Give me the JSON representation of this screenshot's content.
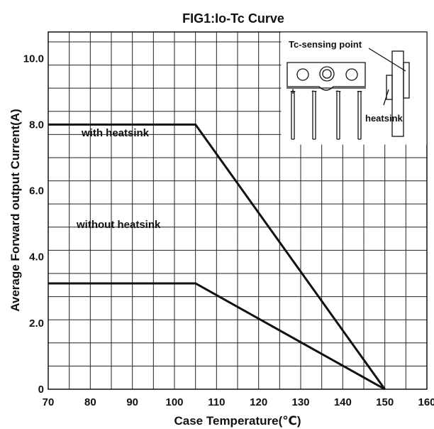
{
  "chart_data": {
    "type": "line",
    "title": "FIG1:Io-Tc Curve",
    "xlabel": "Case Temperature(℃)",
    "ylabel": "Average Forward output Current(A)",
    "xlim": [
      70,
      160
    ],
    "ylim": [
      0,
      10.8
    ],
    "x_ticks": [
      "70",
      "80",
      "90",
      "100",
      "110",
      "120",
      "130",
      "140",
      "150",
      "160"
    ],
    "y_ticks": [
      "0",
      "2.0",
      "4.0",
      "6.0",
      "8.0",
      "10.0"
    ],
    "grid": true,
    "series": [
      {
        "name": "with heatsink",
        "x": [
          70,
          105,
          150
        ],
        "y": [
          8.0,
          8.0,
          0
        ]
      },
      {
        "name": "without heatsink",
        "x": [
          70,
          105,
          150
        ],
        "y": [
          3.2,
          3.2,
          0
        ]
      }
    ],
    "inset": {
      "labels": [
        "Tc-sensing point",
        "heatsink"
      ],
      "pin_marks": [
        "+",
        "~",
        "~",
        "−"
      ]
    },
    "colors": {
      "line": "#111111",
      "grid": "#222222"
    }
  }
}
